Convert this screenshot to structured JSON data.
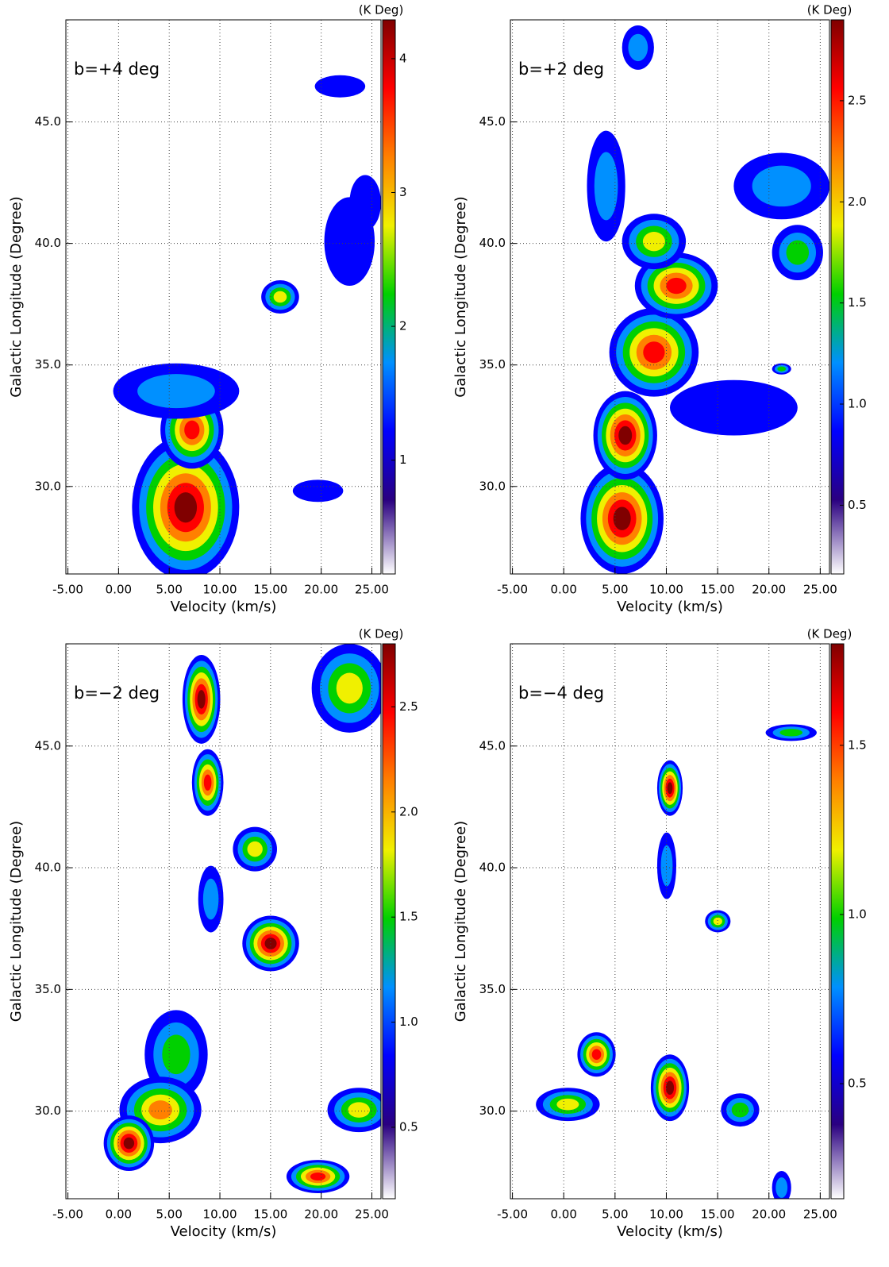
{
  "chart_data": [
    {
      "type": "heatmap",
      "title": "b=+4 deg",
      "x_label": "Velocity (km/s)",
      "y_label": "Galactic Longitude (Degree)",
      "colorbar_label": "(K Deg)",
      "xlim": [
        -5.2,
        25.9
      ],
      "ylim": [
        26.4,
        49.2
      ],
      "grid": true,
      "xticks": [
        {
          "value": -5,
          "label": "-5.00"
        },
        {
          "value": 0,
          "label": "0.00"
        },
        {
          "value": 5,
          "label": "5.00"
        },
        {
          "value": 10,
          "label": "10.00"
        },
        {
          "value": 15,
          "label": "15.00"
        },
        {
          "value": 20,
          "label": "20.00"
        },
        {
          "value": 25,
          "label": "25.00"
        }
      ],
      "yticks": [
        {
          "value": 30,
          "label": "30.0"
        },
        {
          "value": 35,
          "label": "35.0"
        },
        {
          "value": 40,
          "label": "40.0"
        },
        {
          "value": 45,
          "label": "45.0"
        }
      ],
      "clim": [
        0.15,
        4.29
      ],
      "cticks": [
        1,
        2,
        3,
        4
      ],
      "colormap": [
        "#ffffff",
        "#2a0080",
        "#0000ff",
        "#0090ff",
        "#00d000",
        "#f0f000",
        "#ff8000",
        "#ff0000",
        "#800000"
      ]
    },
    {
      "type": "heatmap",
      "title": "b=+2 deg",
      "x_label": "Velocity (km/s)",
      "y_label": "Galactic Longitude (Degree)",
      "colorbar_label": "(K Deg)",
      "xlim": [
        -5.2,
        25.9
      ],
      "ylim": [
        26.4,
        49.2
      ],
      "grid": true,
      "xticks": [
        {
          "value": -5,
          "label": "-5.00"
        },
        {
          "value": 0,
          "label": "0.00"
        },
        {
          "value": 5,
          "label": "5.00"
        },
        {
          "value": 10,
          "label": "10.00"
        },
        {
          "value": 15,
          "label": "15.00"
        },
        {
          "value": 20,
          "label": "20.00"
        },
        {
          "value": 25,
          "label": "25.00"
        }
      ],
      "yticks": [
        {
          "value": 30,
          "label": "30.0"
        },
        {
          "value": 35,
          "label": "35.0"
        },
        {
          "value": 40,
          "label": "40.0"
        },
        {
          "value": 45,
          "label": "45.0"
        }
      ],
      "clim": [
        0.16,
        2.9
      ],
      "cticks": [
        0.5,
        {
          "value": 1,
          "label": "1.0"
        },
        1.5,
        {
          "value": 2,
          "label": "2.0"
        },
        2.5
      ],
      "colormap": [
        "#ffffff",
        "#2a0080",
        "#0000ff",
        "#0090ff",
        "#00d000",
        "#f0f000",
        "#ff8000",
        "#ff0000",
        "#800000"
      ]
    },
    {
      "type": "heatmap",
      "title": "b=−2 deg",
      "x_label": "Velocity (km/s)",
      "y_label": "Galactic Longitude (Degree)",
      "colorbar_label": "(K Deg)",
      "xlim": [
        -5.2,
        25.9
      ],
      "ylim": [
        26.4,
        49.2
      ],
      "grid": true,
      "xticks": [
        {
          "value": -5,
          "label": "-5.00"
        },
        {
          "value": 0,
          "label": "0.00"
        },
        {
          "value": 5,
          "label": "5.00"
        },
        {
          "value": 10,
          "label": "10.00"
        },
        {
          "value": 15,
          "label": "15.00"
        },
        {
          "value": 20,
          "label": "20.00"
        },
        {
          "value": 25,
          "label": "25.00"
        }
      ],
      "yticks": [
        {
          "value": 30,
          "label": "30.0"
        },
        {
          "value": 35,
          "label": "35.0"
        },
        {
          "value": 40,
          "label": "40.0"
        },
        {
          "value": 45,
          "label": "45.0"
        }
      ],
      "clim": [
        0.16,
        2.8
      ],
      "cticks": [
        0.5,
        {
          "value": 1,
          "label": "1.0"
        },
        1.5,
        {
          "value": 2,
          "label": "2.0"
        },
        2.5
      ],
      "colormap": [
        "#ffffff",
        "#2a0080",
        "#0000ff",
        "#0090ff",
        "#00d000",
        "#f0f000",
        "#ff8000",
        "#ff0000",
        "#800000"
      ]
    },
    {
      "type": "heatmap",
      "title": "b=−4 deg",
      "x_label": "Velocity (km/s)",
      "y_label": "Galactic Longitude (Degree)",
      "colorbar_label": "(K Deg)",
      "xlim": [
        -5.2,
        25.9
      ],
      "ylim": [
        26.4,
        49.2
      ],
      "grid": true,
      "xticks": [
        {
          "value": -5,
          "label": "-5.00"
        },
        {
          "value": 0,
          "label": "0.00"
        },
        {
          "value": 5,
          "label": "5.00"
        },
        {
          "value": 10,
          "label": "10.00"
        },
        {
          "value": 15,
          "label": "15.00"
        },
        {
          "value": 20,
          "label": "20.00"
        },
        {
          "value": 25,
          "label": "25.00"
        }
      ],
      "yticks": [
        {
          "value": 30,
          "label": "30.0"
        },
        {
          "value": 35,
          "label": "35.0"
        },
        {
          "value": 40,
          "label": "40.0"
        },
        {
          "value": 45,
          "label": "45.0"
        }
      ],
      "clim": [
        0.16,
        1.8
      ],
      "cticks": [
        0.5,
        {
          "value": 1,
          "label": "1.0"
        },
        1.5
      ],
      "colormap": [
        "#ffffff",
        "#2a0080",
        "#0000ff",
        "#0090ff",
        "#00d000",
        "#f0f000",
        "#ff8000",
        "#ff0000",
        "#800000"
      ]
    }
  ]
}
